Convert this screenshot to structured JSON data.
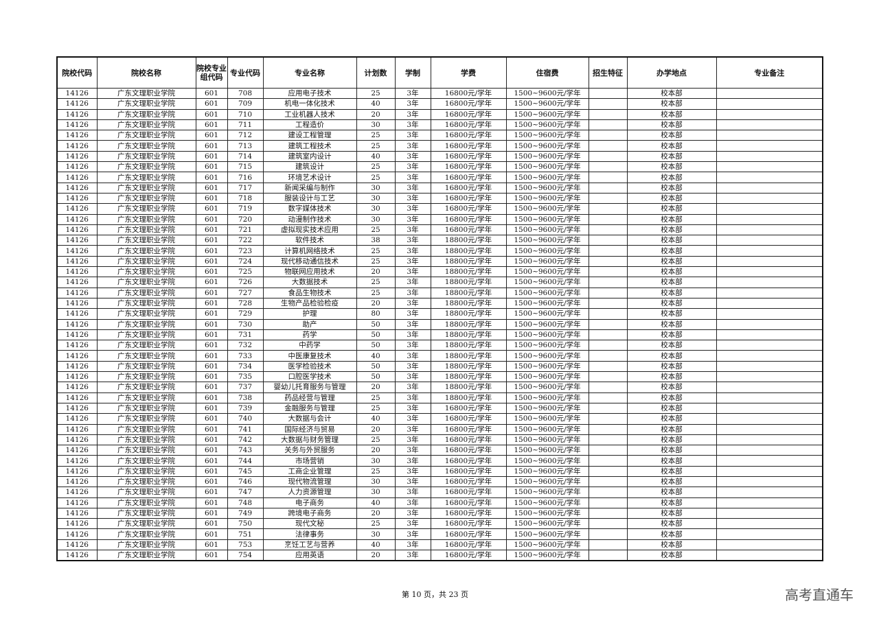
{
  "table": {
    "headers": [
      "院校代码",
      "院校名称",
      "院校专业组代码",
      "专业代码",
      "专业名称",
      "计划数",
      "学制",
      "学费",
      "住宿费",
      "招生特征",
      "办学地点",
      "专业备注"
    ],
    "rows": [
      [
        "14126",
        "广东文理职业学院",
        "601",
        "708",
        "应用电子技术",
        "25",
        "3年",
        "16800元/学年",
        "1500~9600元/学年",
        "",
        "校本部",
        ""
      ],
      [
        "14126",
        "广东文理职业学院",
        "601",
        "709",
        "机电一体化技术",
        "40",
        "3年",
        "16800元/学年",
        "1500~9600元/学年",
        "",
        "校本部",
        ""
      ],
      [
        "14126",
        "广东文理职业学院",
        "601",
        "710",
        "工业机器人技术",
        "20",
        "3年",
        "16800元/学年",
        "1500~9600元/学年",
        "",
        "校本部",
        ""
      ],
      [
        "14126",
        "广东文理职业学院",
        "601",
        "711",
        "工程造价",
        "30",
        "3年",
        "16800元/学年",
        "1500~9600元/学年",
        "",
        "校本部",
        ""
      ],
      [
        "14126",
        "广东文理职业学院",
        "601",
        "712",
        "建设工程管理",
        "25",
        "3年",
        "16800元/学年",
        "1500~9600元/学年",
        "",
        "校本部",
        ""
      ],
      [
        "14126",
        "广东文理职业学院",
        "601",
        "713",
        "建筑工程技术",
        "25",
        "3年",
        "16800元/学年",
        "1500~9600元/学年",
        "",
        "校本部",
        ""
      ],
      [
        "14126",
        "广东文理职业学院",
        "601",
        "714",
        "建筑室内设计",
        "40",
        "3年",
        "16800元/学年",
        "1500~9600元/学年",
        "",
        "校本部",
        ""
      ],
      [
        "14126",
        "广东文理职业学院",
        "601",
        "715",
        "建筑设计",
        "25",
        "3年",
        "16800元/学年",
        "1500~9600元/学年",
        "",
        "校本部",
        ""
      ],
      [
        "14126",
        "广东文理职业学院",
        "601",
        "716",
        "环境艺术设计",
        "25",
        "3年",
        "16800元/学年",
        "1500~9600元/学年",
        "",
        "校本部",
        ""
      ],
      [
        "14126",
        "广东文理职业学院",
        "601",
        "717",
        "新闻采编与制作",
        "30",
        "3年",
        "16800元/学年",
        "1500~9600元/学年",
        "",
        "校本部",
        ""
      ],
      [
        "14126",
        "广东文理职业学院",
        "601",
        "718",
        "服装设计与工艺",
        "30",
        "3年",
        "16800元/学年",
        "1500~9600元/学年",
        "",
        "校本部",
        ""
      ],
      [
        "14126",
        "广东文理职业学院",
        "601",
        "719",
        "数字媒体技术",
        "30",
        "3年",
        "16800元/学年",
        "1500~9600元/学年",
        "",
        "校本部",
        ""
      ],
      [
        "14126",
        "广东文理职业学院",
        "601",
        "720",
        "动漫制作技术",
        "30",
        "3年",
        "16800元/学年",
        "1500~9600元/学年",
        "",
        "校本部",
        ""
      ],
      [
        "14126",
        "广东文理职业学院",
        "601",
        "721",
        "虚拟现实技术应用",
        "25",
        "3年",
        "16800元/学年",
        "1500~9600元/学年",
        "",
        "校本部",
        ""
      ],
      [
        "14126",
        "广东文理职业学院",
        "601",
        "722",
        "软件技术",
        "38",
        "3年",
        "18800元/学年",
        "1500~9600元/学年",
        "",
        "校本部",
        ""
      ],
      [
        "14126",
        "广东文理职业学院",
        "601",
        "723",
        "计算机网络技术",
        "25",
        "3年",
        "18800元/学年",
        "1500~9600元/学年",
        "",
        "校本部",
        ""
      ],
      [
        "14126",
        "广东文理职业学院",
        "601",
        "724",
        "现代移动通信技术",
        "25",
        "3年",
        "18800元/学年",
        "1500~9600元/学年",
        "",
        "校本部",
        ""
      ],
      [
        "14126",
        "广东文理职业学院",
        "601",
        "725",
        "物联网应用技术",
        "20",
        "3年",
        "18800元/学年",
        "1500~9600元/学年",
        "",
        "校本部",
        ""
      ],
      [
        "14126",
        "广东文理职业学院",
        "601",
        "726",
        "大数据技术",
        "25",
        "3年",
        "18800元/学年",
        "1500~9600元/学年",
        "",
        "校本部",
        ""
      ],
      [
        "14126",
        "广东文理职业学院",
        "601",
        "727",
        "食品生物技术",
        "25",
        "3年",
        "18800元/学年",
        "1500~9600元/学年",
        "",
        "校本部",
        ""
      ],
      [
        "14126",
        "广东文理职业学院",
        "601",
        "728",
        "生物产品检验检疫",
        "20",
        "3年",
        "18800元/学年",
        "1500~9600元/学年",
        "",
        "校本部",
        ""
      ],
      [
        "14126",
        "广东文理职业学院",
        "601",
        "729",
        "护理",
        "80",
        "3年",
        "18800元/学年",
        "1500~9600元/学年",
        "",
        "校本部",
        ""
      ],
      [
        "14126",
        "广东文理职业学院",
        "601",
        "730",
        "助产",
        "50",
        "3年",
        "18800元/学年",
        "1500~9600元/学年",
        "",
        "校本部",
        ""
      ],
      [
        "14126",
        "广东文理职业学院",
        "601",
        "731",
        "药学",
        "50",
        "3年",
        "18800元/学年",
        "1500~9600元/学年",
        "",
        "校本部",
        ""
      ],
      [
        "14126",
        "广东文理职业学院",
        "601",
        "732",
        "中药学",
        "50",
        "3年",
        "18800元/学年",
        "1500~9600元/学年",
        "",
        "校本部",
        ""
      ],
      [
        "14126",
        "广东文理职业学院",
        "601",
        "733",
        "中医康复技术",
        "40",
        "3年",
        "18800元/学年",
        "1500~9600元/学年",
        "",
        "校本部",
        ""
      ],
      [
        "14126",
        "广东文理职业学院",
        "601",
        "734",
        "医学检验技术",
        "50",
        "3年",
        "18800元/学年",
        "1500~9600元/学年",
        "",
        "校本部",
        ""
      ],
      [
        "14126",
        "广东文理职业学院",
        "601",
        "735",
        "口腔医学技术",
        "50",
        "3年",
        "18800元/学年",
        "1500~9600元/学年",
        "",
        "校本部",
        ""
      ],
      [
        "14126",
        "广东文理职业学院",
        "601",
        "737",
        "婴幼儿托育服务与管理",
        "20",
        "3年",
        "18800元/学年",
        "1500~9600元/学年",
        "",
        "校本部",
        ""
      ],
      [
        "14126",
        "广东文理职业学院",
        "601",
        "738",
        "药品经营与管理",
        "25",
        "3年",
        "18800元/学年",
        "1500~9600元/学年",
        "",
        "校本部",
        ""
      ],
      [
        "14126",
        "广东文理职业学院",
        "601",
        "739",
        "金融服务与管理",
        "25",
        "3年",
        "16800元/学年",
        "1500~9600元/学年",
        "",
        "校本部",
        ""
      ],
      [
        "14126",
        "广东文理职业学院",
        "601",
        "740",
        "大数据与会计",
        "40",
        "3年",
        "16800元/学年",
        "1500~9600元/学年",
        "",
        "校本部",
        ""
      ],
      [
        "14126",
        "广东文理职业学院",
        "601",
        "741",
        "国际经济与贸易",
        "20",
        "3年",
        "16800元/学年",
        "1500~9600元/学年",
        "",
        "校本部",
        ""
      ],
      [
        "14126",
        "广东文理职业学院",
        "601",
        "742",
        "大数据与财务管理",
        "25",
        "3年",
        "16800元/学年",
        "1500~9600元/学年",
        "",
        "校本部",
        ""
      ],
      [
        "14126",
        "广东文理职业学院",
        "601",
        "743",
        "关务与外贸服务",
        "20",
        "3年",
        "16800元/学年",
        "1500~9600元/学年",
        "",
        "校本部",
        ""
      ],
      [
        "14126",
        "广东文理职业学院",
        "601",
        "744",
        "市场营销",
        "30",
        "3年",
        "16800元/学年",
        "1500~9600元/学年",
        "",
        "校本部",
        ""
      ],
      [
        "14126",
        "广东文理职业学院",
        "601",
        "745",
        "工商企业管理",
        "25",
        "3年",
        "16800元/学年",
        "1500~9600元/学年",
        "",
        "校本部",
        ""
      ],
      [
        "14126",
        "广东文理职业学院",
        "601",
        "746",
        "现代物流管理",
        "30",
        "3年",
        "16800元/学年",
        "1500~9600元/学年",
        "",
        "校本部",
        ""
      ],
      [
        "14126",
        "广东文理职业学院",
        "601",
        "747",
        "人力资源管理",
        "30",
        "3年",
        "16800元/学年",
        "1500~9600元/学年",
        "",
        "校本部",
        ""
      ],
      [
        "14126",
        "广东文理职业学院",
        "601",
        "748",
        "电子商务",
        "40",
        "3年",
        "16800元/学年",
        "1500~9600元/学年",
        "",
        "校本部",
        ""
      ],
      [
        "14126",
        "广东文理职业学院",
        "601",
        "749",
        "跨境电子商务",
        "20",
        "3年",
        "16800元/学年",
        "1500~9600元/学年",
        "",
        "校本部",
        ""
      ],
      [
        "14126",
        "广东文理职业学院",
        "601",
        "750",
        "现代文秘",
        "25",
        "3年",
        "16800元/学年",
        "1500~9600元/学年",
        "",
        "校本部",
        ""
      ],
      [
        "14126",
        "广东文理职业学院",
        "601",
        "751",
        "法律事务",
        "30",
        "3年",
        "16800元/学年",
        "1500~9600元/学年",
        "",
        "校本部",
        ""
      ],
      [
        "14126",
        "广东文理职业学院",
        "601",
        "753",
        "烹饪工艺与营养",
        "40",
        "3年",
        "16800元/学年",
        "1500~9600元/学年",
        "",
        "校本部",
        ""
      ],
      [
        "14126",
        "广东文理职业学院",
        "601",
        "754",
        "应用英语",
        "20",
        "3年",
        "16800元/学年",
        "1500~9600元/学年",
        "",
        "校本部",
        ""
      ]
    ]
  },
  "footer": {
    "page_info": "第 10 页，共 23 页"
  },
  "watermark": "高考直通车"
}
